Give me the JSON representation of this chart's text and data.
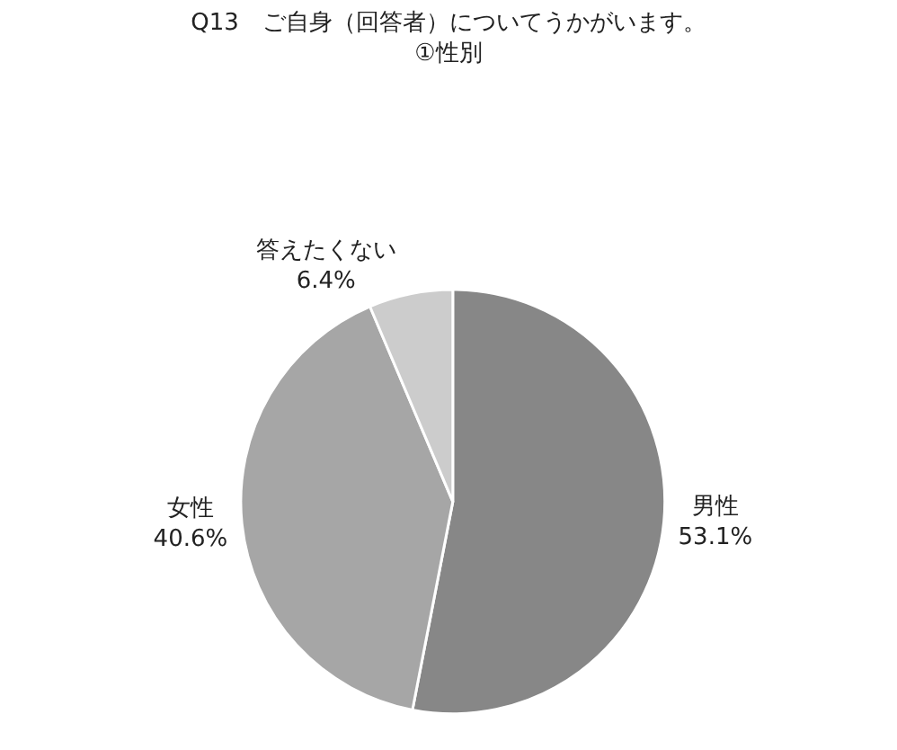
{
  "chart_data": {
    "type": "pie",
    "title": "Q13　ご自身（回答者）についてうかがいます。\n①性別",
    "categories": [
      "男性",
      "女性",
      "答えたくない"
    ],
    "values": [
      53.1,
      40.6,
      6.4
    ],
    "value_labels": [
      "53.1%",
      "40.6%",
      "6.4%"
    ],
    "colors": [
      "#878787",
      "#a6a6a6",
      "#cccccc"
    ],
    "legend": false
  }
}
